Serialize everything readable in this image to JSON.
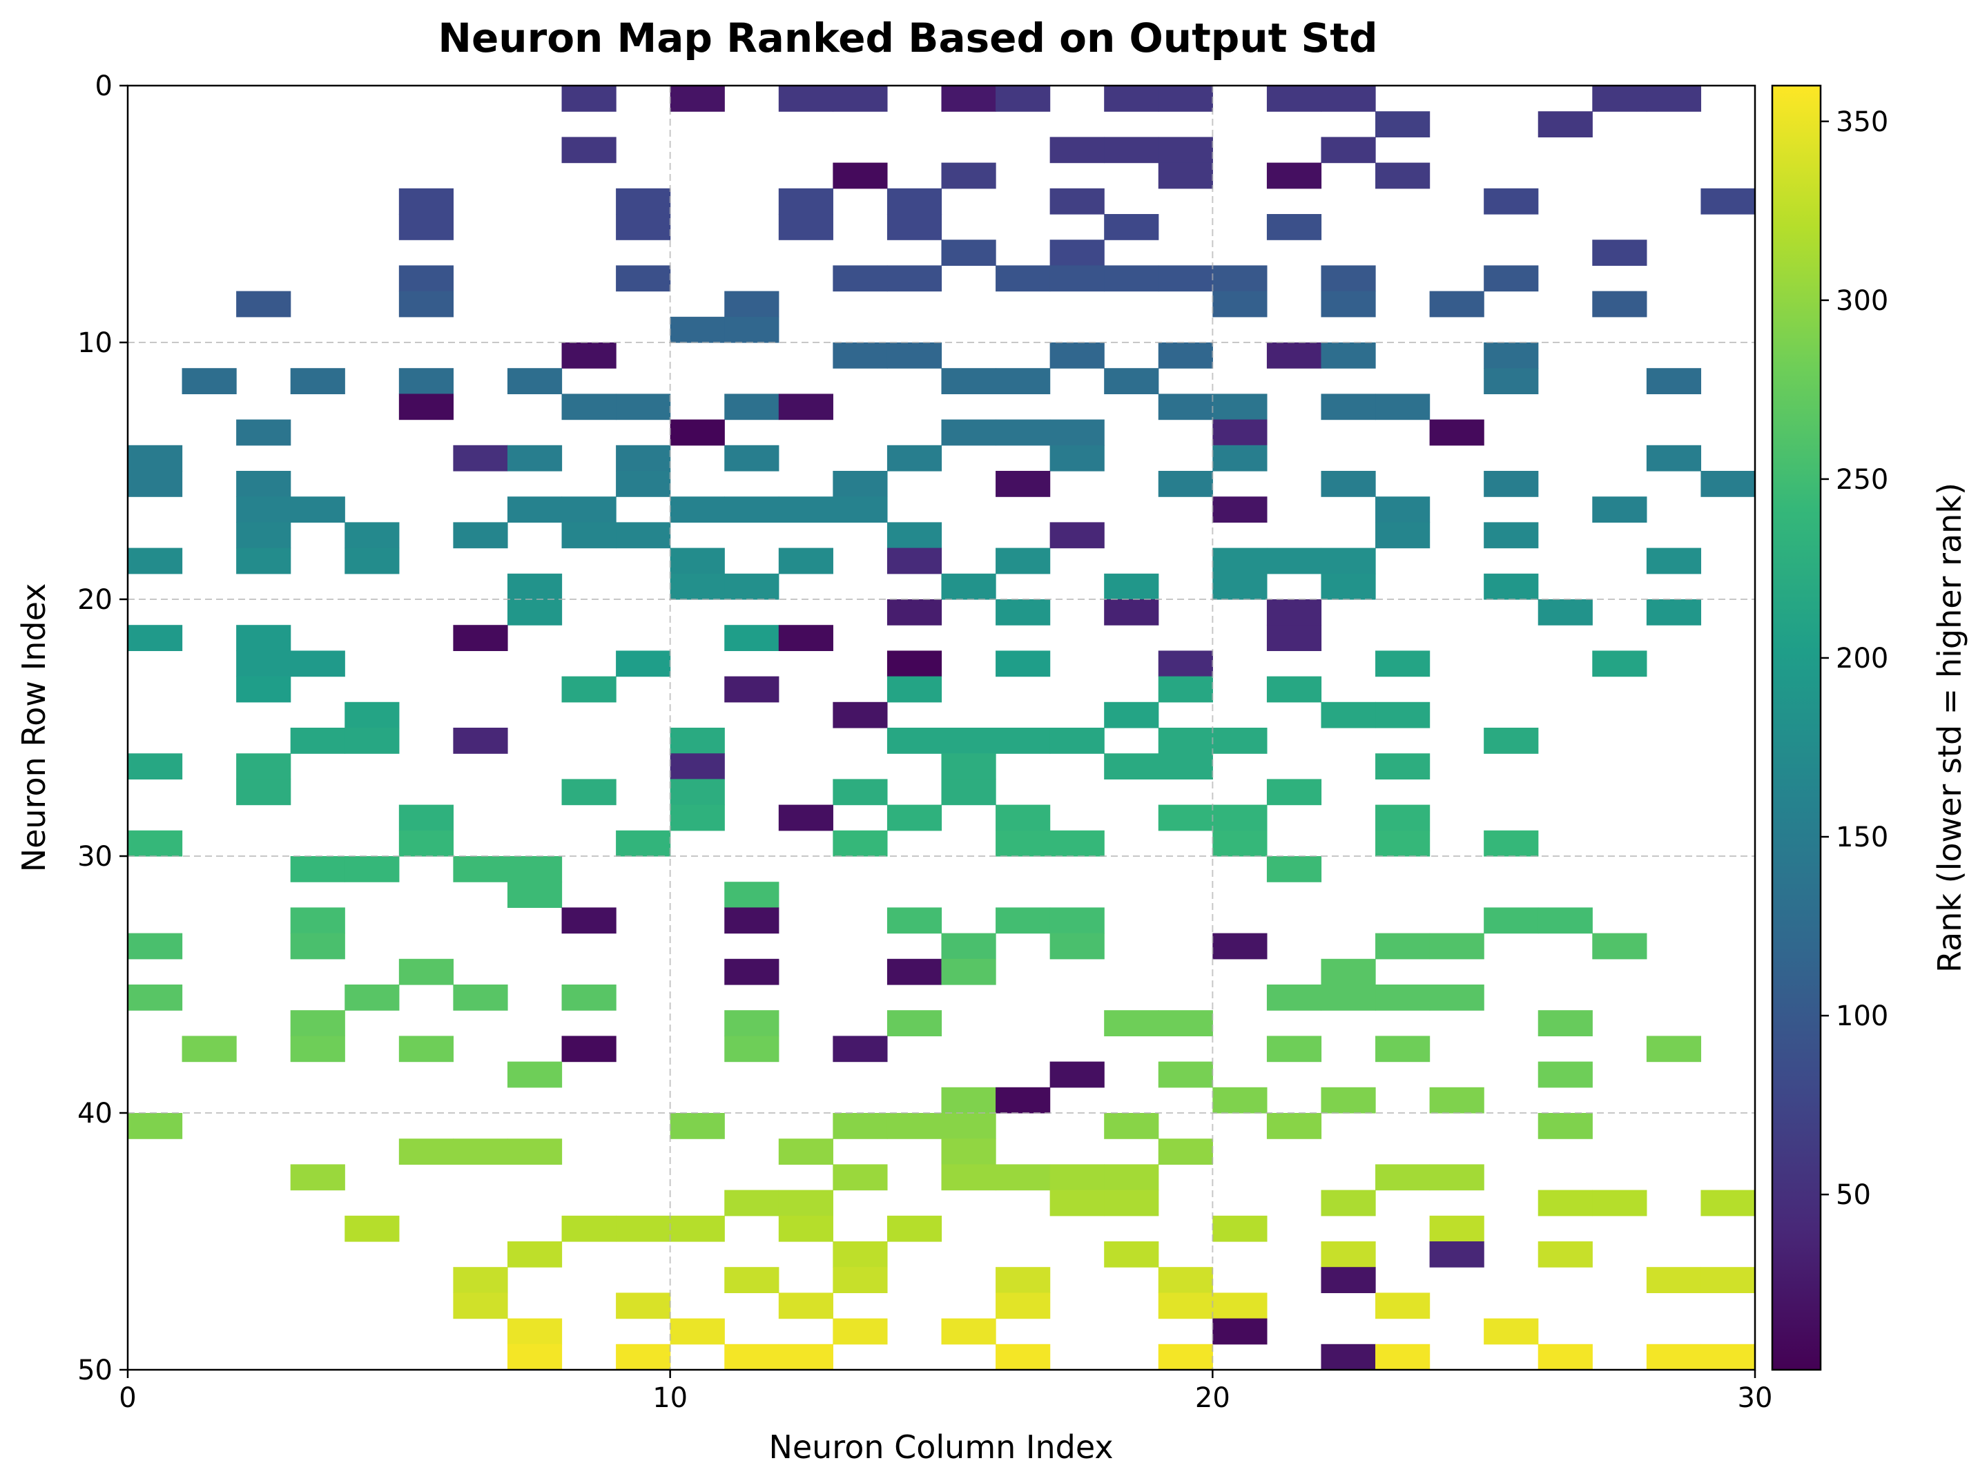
{
  "chart_data": {
    "type": "heatmap",
    "title": "Neuron Map Ranked Based on Output Std",
    "xlabel": "Neuron Column Index",
    "ylabel": "Neuron Row Index",
    "colorbar_label": "Rank (lower std = higher rank)",
    "colormap": "viridis",
    "xlim": [
      0,
      30
    ],
    "ylim": [
      50,
      0
    ],
    "x_ticks": [
      0,
      10,
      20,
      30
    ],
    "y_ticks": [
      0,
      10,
      20,
      30,
      40,
      50
    ],
    "colorbar_range": [
      1,
      360
    ],
    "colorbar_ticks": [
      50,
      100,
      150,
      200,
      250,
      300,
      350
    ],
    "grid": true,
    "cells": [
      [
        0,
        8,
        60
      ],
      [
        0,
        10,
        20
      ],
      [
        0,
        12,
        60
      ],
      [
        0,
        13,
        60
      ],
      [
        0,
        15,
        25
      ],
      [
        0,
        16,
        60
      ],
      [
        0,
        18,
        60
      ],
      [
        0,
        19,
        60
      ],
      [
        0,
        21,
        60
      ],
      [
        0,
        22,
        60
      ],
      [
        0,
        27,
        60
      ],
      [
        0,
        28,
        60
      ],
      [
        1,
        23,
        70
      ],
      [
        1,
        26,
        60
      ],
      [
        2,
        8,
        60
      ],
      [
        2,
        17,
        60
      ],
      [
        2,
        18,
        60
      ],
      [
        2,
        19,
        60
      ],
      [
        2,
        22,
        60
      ],
      [
        3,
        13,
        10
      ],
      [
        3,
        15,
        70
      ],
      [
        3,
        19,
        60
      ],
      [
        3,
        21,
        15
      ],
      [
        3,
        23,
        65
      ],
      [
        4,
        5,
        80
      ],
      [
        4,
        9,
        80
      ],
      [
        4,
        12,
        80
      ],
      [
        4,
        14,
        80
      ],
      [
        4,
        17,
        70
      ],
      [
        4,
        25,
        80
      ],
      [
        4,
        29,
        80
      ],
      [
        5,
        5,
        80
      ],
      [
        5,
        9,
        80
      ],
      [
        5,
        12,
        80
      ],
      [
        5,
        14,
        80
      ],
      [
        5,
        18,
        80
      ],
      [
        5,
        21,
        90
      ],
      [
        6,
        15,
        90
      ],
      [
        6,
        17,
        80
      ],
      [
        6,
        27,
        75
      ],
      [
        7,
        5,
        95
      ],
      [
        7,
        9,
        90
      ],
      [
        7,
        13,
        90
      ],
      [
        7,
        14,
        90
      ],
      [
        7,
        16,
        95
      ],
      [
        7,
        17,
        95
      ],
      [
        7,
        18,
        95
      ],
      [
        7,
        19,
        95
      ],
      [
        7,
        20,
        100
      ],
      [
        7,
        22,
        100
      ],
      [
        7,
        25,
        100
      ],
      [
        8,
        2,
        100
      ],
      [
        8,
        5,
        105
      ],
      [
        8,
        11,
        110
      ],
      [
        8,
        20,
        110
      ],
      [
        8,
        22,
        110
      ],
      [
        8,
        24,
        105
      ],
      [
        8,
        27,
        105
      ],
      [
        9,
        10,
        120
      ],
      [
        9,
        11,
        120
      ],
      [
        10,
        8,
        15
      ],
      [
        10,
        13,
        120
      ],
      [
        10,
        14,
        120
      ],
      [
        10,
        17,
        120
      ],
      [
        10,
        19,
        120
      ],
      [
        10,
        21,
        35
      ],
      [
        10,
        22,
        130
      ],
      [
        10,
        25,
        130
      ],
      [
        11,
        1,
        130
      ],
      [
        11,
        3,
        130
      ],
      [
        11,
        5,
        130
      ],
      [
        11,
        7,
        130
      ],
      [
        11,
        15,
        130
      ],
      [
        11,
        16,
        130
      ],
      [
        11,
        18,
        130
      ],
      [
        11,
        25,
        140
      ],
      [
        11,
        28,
        130
      ],
      [
        12,
        5,
        10
      ],
      [
        12,
        8,
        135
      ],
      [
        12,
        9,
        135
      ],
      [
        12,
        11,
        135
      ],
      [
        12,
        12,
        15
      ],
      [
        12,
        19,
        135
      ],
      [
        12,
        20,
        140
      ],
      [
        12,
        22,
        135
      ],
      [
        12,
        23,
        135
      ],
      [
        13,
        2,
        140
      ],
      [
        13,
        10,
        5
      ],
      [
        13,
        15,
        140
      ],
      [
        13,
        16,
        140
      ],
      [
        13,
        17,
        140
      ],
      [
        13,
        20,
        40
      ],
      [
        13,
        24,
        10
      ],
      [
        14,
        0,
        150
      ],
      [
        14,
        6,
        50
      ],
      [
        14,
        7,
        155
      ],
      [
        14,
        9,
        150
      ],
      [
        14,
        11,
        155
      ],
      [
        14,
        14,
        155
      ],
      [
        14,
        17,
        150
      ],
      [
        14,
        20,
        155
      ],
      [
        14,
        28,
        155
      ],
      [
        15,
        0,
        150
      ],
      [
        15,
        2,
        155
      ],
      [
        15,
        9,
        155
      ],
      [
        15,
        13,
        155
      ],
      [
        15,
        16,
        15
      ],
      [
        15,
        19,
        155
      ],
      [
        15,
        22,
        155
      ],
      [
        15,
        25,
        155
      ],
      [
        15,
        29,
        155
      ],
      [
        16,
        2,
        160
      ],
      [
        16,
        3,
        160
      ],
      [
        16,
        7,
        160
      ],
      [
        16,
        8,
        160
      ],
      [
        16,
        10,
        160
      ],
      [
        16,
        11,
        160
      ],
      [
        16,
        12,
        160
      ],
      [
        16,
        13,
        160
      ],
      [
        16,
        20,
        20
      ],
      [
        16,
        23,
        160
      ],
      [
        16,
        27,
        160
      ],
      [
        17,
        2,
        165
      ],
      [
        17,
        4,
        170
      ],
      [
        17,
        6,
        165
      ],
      [
        17,
        8,
        165
      ],
      [
        17,
        9,
        165
      ],
      [
        17,
        14,
        170
      ],
      [
        17,
        17,
        40
      ],
      [
        17,
        23,
        165
      ],
      [
        17,
        25,
        170
      ],
      [
        18,
        0,
        175
      ],
      [
        18,
        2,
        175
      ],
      [
        18,
        4,
        175
      ],
      [
        18,
        10,
        175
      ],
      [
        18,
        12,
        175
      ],
      [
        18,
        14,
        45
      ],
      [
        18,
        16,
        180
      ],
      [
        18,
        20,
        180
      ],
      [
        18,
        21,
        180
      ],
      [
        18,
        22,
        180
      ],
      [
        18,
        28,
        180
      ],
      [
        19,
        7,
        185
      ],
      [
        19,
        10,
        180
      ],
      [
        19,
        11,
        180
      ],
      [
        19,
        15,
        185
      ],
      [
        19,
        18,
        190
      ],
      [
        19,
        20,
        180
      ],
      [
        19,
        22,
        185
      ],
      [
        19,
        25,
        190
      ],
      [
        20,
        7,
        190
      ],
      [
        20,
        14,
        30
      ],
      [
        20,
        16,
        190
      ],
      [
        20,
        18,
        35
      ],
      [
        20,
        21,
        40
      ],
      [
        20,
        26,
        185
      ],
      [
        20,
        28,
        190
      ],
      [
        21,
        0,
        195
      ],
      [
        21,
        2,
        195
      ],
      [
        21,
        6,
        10
      ],
      [
        21,
        11,
        200
      ],
      [
        21,
        12,
        10
      ],
      [
        21,
        21,
        40
      ],
      [
        22,
        2,
        195
      ],
      [
        22,
        3,
        195
      ],
      [
        22,
        9,
        200
      ],
      [
        22,
        14,
        5
      ],
      [
        22,
        16,
        200
      ],
      [
        22,
        19,
        45
      ],
      [
        22,
        23,
        210
      ],
      [
        22,
        27,
        210
      ],
      [
        23,
        2,
        200
      ],
      [
        23,
        8,
        215
      ],
      [
        23,
        11,
        30
      ],
      [
        23,
        14,
        210
      ],
      [
        23,
        19,
        215
      ],
      [
        23,
        21,
        215
      ],
      [
        24,
        4,
        210
      ],
      [
        24,
        13,
        20
      ],
      [
        24,
        18,
        210
      ],
      [
        24,
        22,
        215
      ],
      [
        24,
        23,
        215
      ],
      [
        25,
        3,
        215
      ],
      [
        25,
        4,
        215
      ],
      [
        25,
        6,
        40
      ],
      [
        25,
        10,
        220
      ],
      [
        25,
        14,
        215
      ],
      [
        25,
        15,
        215
      ],
      [
        25,
        16,
        215
      ],
      [
        25,
        17,
        215
      ],
      [
        25,
        19,
        220
      ],
      [
        25,
        20,
        220
      ],
      [
        25,
        25,
        220
      ],
      [
        26,
        0,
        215
      ],
      [
        26,
        2,
        225
      ],
      [
        26,
        10,
        45
      ],
      [
        26,
        15,
        225
      ],
      [
        26,
        18,
        220
      ],
      [
        26,
        19,
        220
      ],
      [
        26,
        23,
        225
      ],
      [
        27,
        2,
        225
      ],
      [
        27,
        8,
        225
      ],
      [
        27,
        10,
        225
      ],
      [
        27,
        13,
        225
      ],
      [
        27,
        15,
        225
      ],
      [
        27,
        21,
        230
      ],
      [
        28,
        5,
        230
      ],
      [
        28,
        10,
        230
      ],
      [
        28,
        12,
        15
      ],
      [
        28,
        14,
        230
      ],
      [
        28,
        16,
        235
      ],
      [
        28,
        19,
        235
      ],
      [
        28,
        20,
        235
      ],
      [
        28,
        23,
        235
      ],
      [
        29,
        0,
        240
      ],
      [
        29,
        5,
        240
      ],
      [
        29,
        9,
        235
      ],
      [
        29,
        13,
        240
      ],
      [
        29,
        16,
        240
      ],
      [
        29,
        17,
        240
      ],
      [
        29,
        20,
        240
      ],
      [
        29,
        23,
        240
      ],
      [
        29,
        25,
        240
      ],
      [
        30,
        3,
        240
      ],
      [
        30,
        4,
        240
      ],
      [
        30,
        6,
        245
      ],
      [
        30,
        7,
        245
      ],
      [
        30,
        21,
        245
      ],
      [
        31,
        7,
        245
      ],
      [
        31,
        11,
        250
      ],
      [
        32,
        3,
        250
      ],
      [
        32,
        8,
        15
      ],
      [
        32,
        11,
        15
      ],
      [
        32,
        14,
        250
      ],
      [
        32,
        16,
        250
      ],
      [
        32,
        17,
        250
      ],
      [
        32,
        25,
        250
      ],
      [
        32,
        26,
        250
      ],
      [
        33,
        0,
        255
      ],
      [
        33,
        3,
        255
      ],
      [
        33,
        15,
        255
      ],
      [
        33,
        17,
        255
      ],
      [
        33,
        20,
        20
      ],
      [
        33,
        23,
        260
      ],
      [
        33,
        24,
        260
      ],
      [
        33,
        27,
        260
      ],
      [
        34,
        5,
        265
      ],
      [
        34,
        11,
        15
      ],
      [
        34,
        14,
        15
      ],
      [
        34,
        15,
        265
      ],
      [
        34,
        22,
        265
      ],
      [
        35,
        0,
        265
      ],
      [
        35,
        4,
        265
      ],
      [
        35,
        6,
        265
      ],
      [
        35,
        8,
        265
      ],
      [
        35,
        21,
        265
      ],
      [
        35,
        22,
        265
      ],
      [
        35,
        23,
        265
      ],
      [
        35,
        24,
        265
      ],
      [
        36,
        3,
        275
      ],
      [
        36,
        11,
        275
      ],
      [
        36,
        14,
        275
      ],
      [
        36,
        18,
        280
      ],
      [
        36,
        19,
        280
      ],
      [
        36,
        26,
        275
      ],
      [
        37,
        1,
        285
      ],
      [
        37,
        3,
        280
      ],
      [
        37,
        5,
        280
      ],
      [
        37,
        8,
        10
      ],
      [
        37,
        11,
        280
      ],
      [
        37,
        13,
        25
      ],
      [
        37,
        21,
        280
      ],
      [
        37,
        23,
        280
      ],
      [
        37,
        28,
        285
      ],
      [
        38,
        7,
        280
      ],
      [
        38,
        17,
        15
      ],
      [
        38,
        19,
        285
      ],
      [
        38,
        26,
        280
      ],
      [
        39,
        15,
        290
      ],
      [
        39,
        16,
        10
      ],
      [
        39,
        20,
        290
      ],
      [
        39,
        22,
        290
      ],
      [
        39,
        24,
        290
      ],
      [
        40,
        0,
        290
      ],
      [
        40,
        10,
        290
      ],
      [
        40,
        13,
        295
      ],
      [
        40,
        14,
        295
      ],
      [
        40,
        15,
        295
      ],
      [
        40,
        18,
        295
      ],
      [
        40,
        21,
        295
      ],
      [
        40,
        26,
        290
      ],
      [
        41,
        5,
        300
      ],
      [
        41,
        6,
        300
      ],
      [
        41,
        7,
        300
      ],
      [
        41,
        12,
        300
      ],
      [
        41,
        15,
        300
      ],
      [
        41,
        19,
        300
      ],
      [
        42,
        3,
        305
      ],
      [
        42,
        13,
        305
      ],
      [
        42,
        15,
        305
      ],
      [
        42,
        16,
        305
      ],
      [
        42,
        17,
        310
      ],
      [
        42,
        18,
        310
      ],
      [
        42,
        23,
        310
      ],
      [
        42,
        24,
        310
      ],
      [
        43,
        11,
        315
      ],
      [
        43,
        12,
        315
      ],
      [
        43,
        17,
        315
      ],
      [
        43,
        18,
        315
      ],
      [
        43,
        22,
        315
      ],
      [
        43,
        26,
        320
      ],
      [
        43,
        27,
        320
      ],
      [
        43,
        29,
        320
      ],
      [
        44,
        4,
        320
      ],
      [
        44,
        8,
        320
      ],
      [
        44,
        9,
        320
      ],
      [
        44,
        10,
        320
      ],
      [
        44,
        12,
        320
      ],
      [
        44,
        14,
        320
      ],
      [
        44,
        20,
        320
      ],
      [
        44,
        24,
        325
      ],
      [
        45,
        7,
        325
      ],
      [
        45,
        13,
        325
      ],
      [
        45,
        18,
        325
      ],
      [
        45,
        22,
        330
      ],
      [
        45,
        24,
        40
      ],
      [
        45,
        26,
        330
      ],
      [
        46,
        6,
        330
      ],
      [
        46,
        11,
        330
      ],
      [
        46,
        13,
        330
      ],
      [
        46,
        16,
        335
      ],
      [
        46,
        19,
        335
      ],
      [
        46,
        22,
        20
      ],
      [
        46,
        28,
        335
      ],
      [
        46,
        29,
        335
      ],
      [
        47,
        6,
        335
      ],
      [
        47,
        9,
        340
      ],
      [
        47,
        12,
        340
      ],
      [
        47,
        16,
        345
      ],
      [
        47,
        19,
        345
      ],
      [
        47,
        20,
        345
      ],
      [
        47,
        23,
        345
      ],
      [
        48,
        7,
        350
      ],
      [
        48,
        10,
        350
      ],
      [
        48,
        13,
        350
      ],
      [
        48,
        15,
        350
      ],
      [
        48,
        20,
        10
      ],
      [
        48,
        25,
        350
      ],
      [
        49,
        7,
        355
      ],
      [
        49,
        9,
        355
      ],
      [
        49,
        11,
        355
      ],
      [
        49,
        12,
        355
      ],
      [
        49,
        16,
        355
      ],
      [
        49,
        19,
        355
      ],
      [
        49,
        22,
        20
      ],
      [
        49,
        23,
        355
      ],
      [
        49,
        26,
        355
      ],
      [
        49,
        28,
        355
      ],
      [
        49,
        29,
        355
      ]
    ]
  }
}
